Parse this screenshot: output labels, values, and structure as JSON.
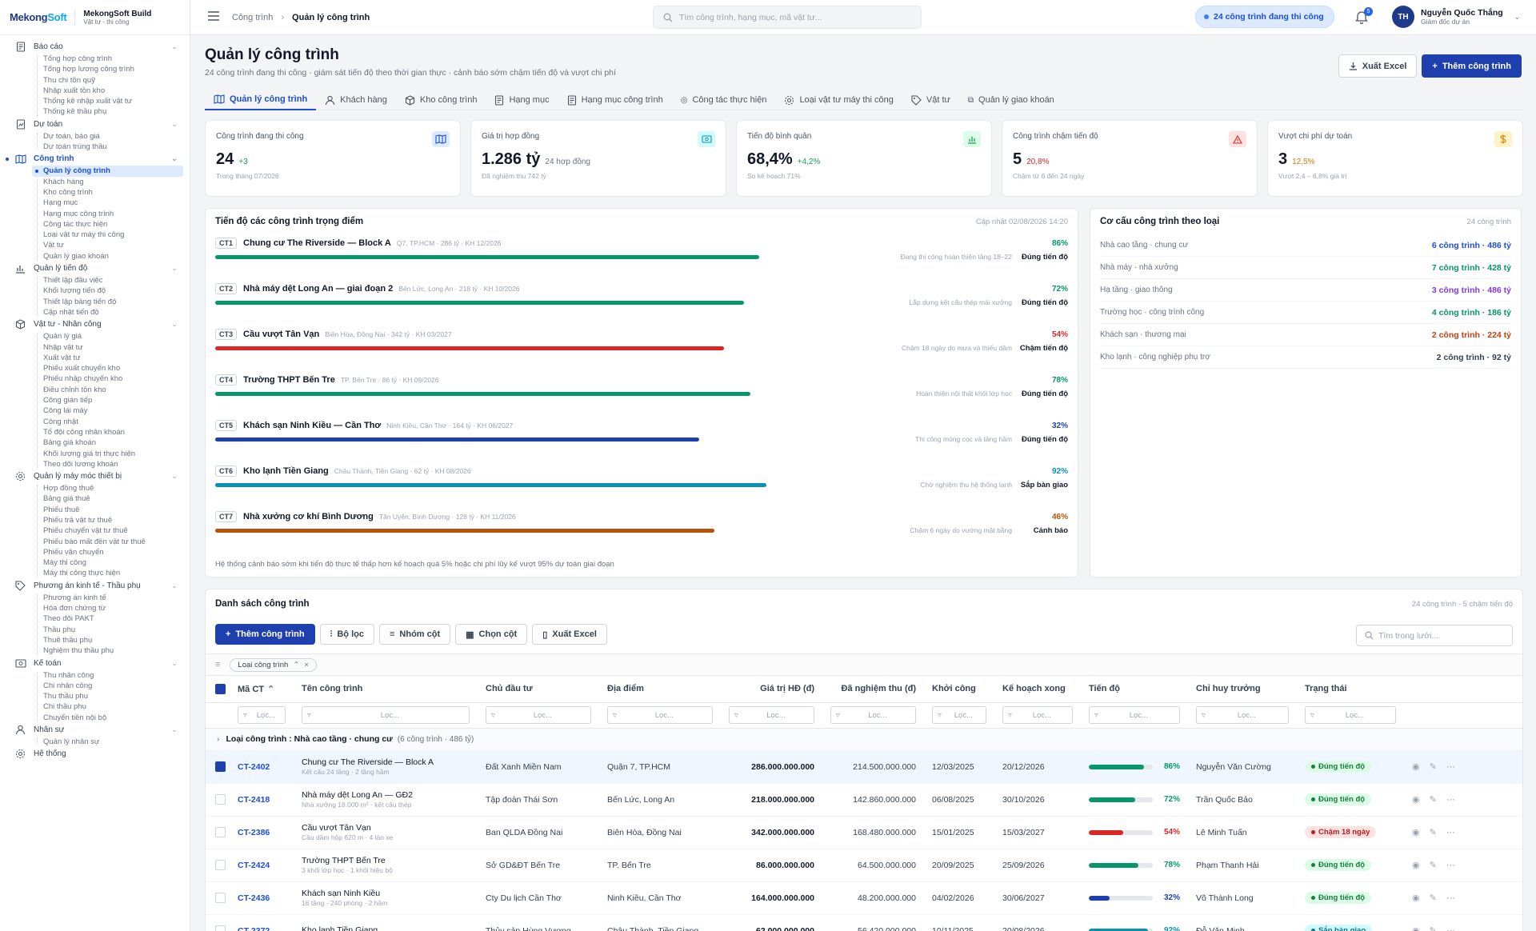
{
  "brand": {
    "logo_a": "Mekong",
    "logo_b": "Soft",
    "app": "MekongSoft Build",
    "app_sub": "Vật tư - thi công"
  },
  "nav": [
    {
      "id": "bao-cao",
      "label": "Báo cáo",
      "icon": "report-icon",
      "items": [
        "Tổng hợp công trình",
        "Tổng hợp lương công trình",
        "Thu chi tồn quỹ",
        "Nhập xuất tồn kho",
        "Thống kê nhập xuất vật tư",
        "Thống kê thầu phụ"
      ]
    },
    {
      "id": "du-toan",
      "label": "Dự toán",
      "icon": "estimate-icon",
      "items": [
        "Dự toán, báo giá",
        "Dự toán trúng thầu"
      ]
    },
    {
      "id": "cong-trinh",
      "label": "Công trình",
      "icon": "map-icon",
      "active": true,
      "items": [
        "Quản lý công trình",
        "Khách hàng",
        "Kho công trình",
        "Hạng mục",
        "Hạng mục công trình",
        "Công tác thực hiện",
        "Loại vật tư máy thi công",
        "Vật tư",
        "Quản lý giao khoán"
      ]
    },
    {
      "id": "tien-do",
      "label": "Quản lý tiến độ",
      "icon": "chart-icon",
      "items": [
        "Thiết lập đầu việc",
        "Khối lượng tiến độ",
        "Thiết lập bảng tiến độ",
        "Cập nhật tiến độ"
      ]
    },
    {
      "id": "vat-tu",
      "label": "Vật tư - Nhân công",
      "icon": "box-icon",
      "items": [
        "Quản lý giá",
        "Nhập vật tư",
        "Xuất vật tư",
        "Phiếu xuất chuyển kho",
        "Phiếu nhập chuyển kho",
        "Điều chỉnh tồn kho",
        "Công gián tiếp",
        "Công lái máy",
        "Công nhật",
        "Tổ đội công nhân khoán",
        "Bảng giá khoán",
        "Khối lượng giá trị thực hiện",
        "Theo dõi lương khoán"
      ]
    },
    {
      "id": "may-moc",
      "label": "Quản lý máy móc thiết bị",
      "icon": "gear-icon",
      "items": [
        "Hợp đồng thuê",
        "Bảng giá thuê",
        "Phiếu thuê",
        "Phiếu trả vật tư thuê",
        "Phiếu chuyển vật tư thuê",
        "Phiếu báo mất đền vật tư thuê",
        "Phiếu vận chuyển",
        "Máy thi công",
        "Máy thi công thực hiện"
      ]
    },
    {
      "id": "phuong-an",
      "label": "Phương án kinh tế - Thầu phụ",
      "icon": "tag-icon",
      "items": [
        "Phương án kinh tế",
        "Hóa đơn chứng từ",
        "Theo dõi PAKT",
        "Thầu phụ",
        "Thuê thầu phụ",
        "Nghiệm thu thầu phụ"
      ]
    },
    {
      "id": "ke-toan",
      "label": "Kế toán",
      "icon": "money-icon",
      "items": [
        "Thu nhân công",
        "Chi nhân công",
        "Thu thầu phụ",
        "Chi thầu phụ",
        "Chuyển tiền nội bộ"
      ]
    },
    {
      "id": "nhan-su",
      "label": "Nhân sự",
      "icon": "user-icon",
      "items": [
        "Quản lý nhân sự"
      ]
    },
    {
      "id": "he-thong",
      "label": "Hệ thống",
      "icon": "settings-icon",
      "items": []
    }
  ],
  "topbar": {
    "crumb1": "Công trình",
    "crumb2": "Quản lý công trình",
    "search_placeholder": "Tìm công trình, hạng mục, mã vật tư...",
    "pill": "24 công trình đang thi công",
    "bell_count": "5",
    "user_initials": "TH",
    "user_name": "Nguyễn Quốc Thắng",
    "user_role": "Giám đốc dự án"
  },
  "page": {
    "title": "Quản lý công trình",
    "subtitle": "24 công trình đang thi công · giám sát tiến độ theo thời gian thực · cảnh báo sớm chậm tiến độ và vượt chi phí",
    "export_label": "Xuất Excel",
    "add_label": "Thêm công trình"
  },
  "tabs": [
    "Quản lý công trình",
    "Khách hàng",
    "Kho công trình",
    "Hạng mục",
    "Hạng mục công trình",
    "Công tác thực hiện",
    "Loại vật tư máy thi công",
    "Vật tư",
    "Quản lý giao khoán"
  ],
  "cards": [
    {
      "label": "Công trình đang thi công",
      "value": "24",
      "delta": "+3",
      "delta_color": "#16a34a",
      "note": "Trong tháng 07/2026",
      "icon": "map-icon",
      "icon_bg": "#dbeafe",
      "icon_color": "#1d4ed8"
    },
    {
      "label": "Giá trị hợp đồng",
      "value": "1.286 tỷ",
      "delta": "24 hợp đồng",
      "delta_color": "#6b7280",
      "note": "Đã nghiệm thu 742 tỷ",
      "icon": "cash-icon",
      "icon_bg": "#cffafe",
      "icon_color": "#0891b2"
    },
    {
      "label": "Tiến độ bình quân",
      "value": "68,4%",
      "delta": "+4,2%",
      "delta_color": "#16a34a",
      "note": "So kế hoạch 71%",
      "icon": "bar-chart-icon",
      "icon_bg": "#dcfce7",
      "icon_color": "#16a34a"
    },
    {
      "label": "Công trình chậm tiến độ",
      "value": "5",
      "delta": "20,8%",
      "delta_color": "#dc2626",
      "note": "Chậm từ 6 đến 24 ngày",
      "icon": "warning-icon",
      "icon_bg": "#fee2e2",
      "icon_color": "#dc2626"
    },
    {
      "label": "Vượt chi phí dự toán",
      "value": "3",
      "delta": "12,5%",
      "delta_color": "#d97706",
      "note": "Vượt 2,4 – 6,8% giá trị",
      "icon": "dollar-icon",
      "icon_bg": "#fef3c7",
      "icon_color": "#d97706"
    }
  ],
  "progress_panel": {
    "title": "Tiến độ các công trình trọng điểm",
    "updated": "Cập nhật 02/08/2026 14:20",
    "footer": "Hệ thống cảnh báo sớm khi tiến độ thực tế thấp hơn kế hoạch quá 5% hoặc chi phí lũy kế vượt 95% dự toán giai đoạn",
    "rows": [
      {
        "code": "CT1",
        "name": "Chung cư The Riverside — Block A",
        "meta": "Q7, TP.HCM · 286 tỷ · KH 12/2026",
        "pct": 86,
        "pct_label": "86%",
        "color": "#059669",
        "note": "Đang thi công hoàn thiện tầng 18–22",
        "status": "Đúng tiến độ"
      },
      {
        "code": "CT2",
        "name": "Nhà máy dệt Long An — giai đoạn 2",
        "meta": "Bến Lức, Long An · 218 tỷ · KH 10/2026",
        "pct": 72,
        "pct_label": "72%",
        "color": "#059669",
        "note": "Lắp dựng kết cấu thép mái xưởng",
        "status": "Đúng tiến độ"
      },
      {
        "code": "CT3",
        "name": "Cầu vượt Tân Vạn",
        "meta": "Biên Hòa, Đồng Nai · 342 tỷ · KH 03/2027",
        "pct": 54,
        "pct_label": "54%",
        "color": "#dc2626",
        "note": "Chậm 18 ngày do mưa và thiếu dầm",
        "status": "Chậm tiến độ"
      },
      {
        "code": "CT4",
        "name": "Trường THPT Bến Tre",
        "meta": "TP. Bến Tre · 86 tỷ · KH 09/2026",
        "pct": 78,
        "pct_label": "78%",
        "color": "#059669",
        "note": "Hoàn thiện nội thất khối lớp học",
        "status": "Đúng tiến độ"
      },
      {
        "code": "CT5",
        "name": "Khách sạn Ninh Kiều — Cần Thơ",
        "meta": "Ninh Kiều, Cần Thơ · 164 tỷ · KH 06/2027",
        "pct": 32,
        "pct_label": "32%",
        "color": "#1e40af",
        "note": "Thi công móng cọc và tầng hầm",
        "status": "Đúng tiến độ"
      },
      {
        "code": "CT6",
        "name": "Kho lạnh Tiền Giang",
        "meta": "Châu Thành, Tiền Giang · 62 tỷ · KH 08/2026",
        "pct": 92,
        "pct_label": "92%",
        "color": "#0891b2",
        "note": "Chờ nghiệm thu hệ thống lạnh",
        "status": "Sắp bàn giao"
      },
      {
        "code": "CT7",
        "name": "Nhà xưởng cơ khí Bình Dương",
        "meta": "Tân Uyên, Bình Dương · 128 tỷ · KH 11/2026",
        "pct": 46,
        "pct_label": "46%",
        "color": "#b45309",
        "note": "Chậm 6 ngày do vướng mặt bằng",
        "status": "Cảnh báo"
      }
    ]
  },
  "structure_panel": {
    "title": "Cơ cấu công trình theo loại",
    "total": "24 công trình",
    "rows": [
      {
        "label": "Nhà cao tầng · chung cư",
        "value": "6 công trình · 486 tỷ",
        "color": "#1d4ed8"
      },
      {
        "label": "Nhà máy · nhà xưởng",
        "value": "7 công trình · 428 tỷ",
        "color": "#059669"
      },
      {
        "label": "Hạ tầng · giao thông",
        "value": "3 công trình · 486 tỷ",
        "color": "#7c3aed"
      },
      {
        "label": "Trường học · công trình công",
        "value": "4 công trình · 186 tỷ",
        "color": "#059669"
      },
      {
        "label": "Khách sạn · thương mại",
        "value": "2 công trình · 224 tỷ",
        "color": "#c2410c"
      },
      {
        "label": "Kho lạnh · công nghiệp phụ trợ",
        "value": "2 công trình · 92 tỷ",
        "color": "#374151"
      }
    ]
  },
  "grid": {
    "title": "Danh sách công trình",
    "summary": "24 công trình · 5 chậm tiến độ",
    "toolbar": {
      "add": "Thêm công trình",
      "filter": "Bộ lọc",
      "group": "Nhóm cột",
      "columns": "Chọn cột",
      "export": "Xuất Excel"
    },
    "search_placeholder": "Tìm trong lưới...",
    "chip": "Loại công trình",
    "filter_placeholder": "Lọc...",
    "columns": [
      "Mã CT",
      "Tên công trình",
      "Chủ đầu tư",
      "Địa điểm",
      "Giá trị HĐ (đ)",
      "Đã nghiệm thu (đ)",
      "Khởi công",
      "Kế hoạch xong",
      "Tiến độ",
      "Chỉ huy trưởng",
      "Trạng thái"
    ],
    "group_label": "Loại công trình : Nhà cao tầng · chung cư",
    "group_count": "(6 công trình · 486 tỷ)",
    "rows": [
      {
        "code": "CT-2402",
        "name": "Chung cư The Riverside — Block A",
        "desc": "Kết cấu 24 tầng · 2 tầng hầm",
        "owner": "Đất Xanh Miền Nam",
        "place": "Quận 7, TP.HCM",
        "value": "286.000.000.000",
        "accepted": "214.500.000.000",
        "start": "12/03/2025",
        "end": "20/12/2026",
        "pct": 86,
        "pct_label": "86%",
        "bar": "#059669",
        "pct_color": "#059669",
        "lead": "Nguyễn Văn Cường",
        "status": "Đúng tiến độ",
        "st_bg": "#dcfce7",
        "st_fg": "#15803d",
        "selected": true
      },
      {
        "code": "CT-2418",
        "name": "Nhà máy dệt Long An — GĐ2",
        "desc": "Nhà xưởng 18.000 m² · kết cấu thép",
        "owner": "Tập đoàn Thái Sơn",
        "place": "Bến Lức, Long An",
        "value": "218.000.000.000",
        "accepted": "142.860.000.000",
        "start": "06/08/2025",
        "end": "30/10/2026",
        "pct": 72,
        "pct_label": "72%",
        "bar": "#059669",
        "pct_color": "#059669",
        "lead": "Trần Quốc Bảo",
        "status": "Đúng tiến độ",
        "st_bg": "#dcfce7",
        "st_fg": "#15803d",
        "selected": false
      },
      {
        "code": "CT-2386",
        "name": "Cầu vượt Tân Vạn",
        "desc": "Cầu dầm hộp 620 m · 4 làn xe",
        "owner": "Ban QLDA Đồng Nai",
        "place": "Biên Hòa, Đồng Nai",
        "value": "342.000.000.000",
        "accepted": "168.480.000.000",
        "start": "15/01/2025",
        "end": "15/03/2027",
        "pct": 54,
        "pct_label": "54%",
        "bar": "#dc2626",
        "pct_color": "#dc2626",
        "lead": "Lê Minh Tuấn",
        "status": "Chậm 18 ngày",
        "st_bg": "#fee2e2",
        "st_fg": "#b91c1c",
        "selected": false
      },
      {
        "code": "CT-2424",
        "name": "Trường THPT Bến Tre",
        "desc": "3 khối lớp học · 1 khối hiệu bộ",
        "owner": "Sở GD&ĐT Bến Tre",
        "place": "TP. Bến Tre",
        "value": "86.000.000.000",
        "accepted": "64.500.000.000",
        "start": "20/09/2025",
        "end": "25/09/2026",
        "pct": 78,
        "pct_label": "78%",
        "bar": "#059669",
        "pct_color": "#059669",
        "lead": "Phạm Thanh Hải",
        "status": "Đúng tiến độ",
        "st_bg": "#dcfce7",
        "st_fg": "#15803d",
        "selected": false
      },
      {
        "code": "CT-2436",
        "name": "Khách sạn Ninh Kiều",
        "desc": "16 tầng · 240 phòng · 2 hầm",
        "owner": "Cty Du lịch Cần Thơ",
        "place": "Ninh Kiều, Cần Thơ",
        "value": "164.000.000.000",
        "accepted": "48.200.000.000",
        "start": "04/02/2026",
        "end": "30/06/2027",
        "pct": 32,
        "pct_label": "32%",
        "bar": "#1e40af",
        "pct_color": "#1e40af",
        "lead": "Võ Thành Long",
        "status": "Đúng tiến độ",
        "st_bg": "#dcfce7",
        "st_fg": "#15803d",
        "selected": false
      },
      {
        "code": "CT-2372",
        "name": "Kho lạnh Tiền Giang",
        "desc": "",
        "owner": "Thủy sản Hùng Vương",
        "place": "Châu Thành, Tiền Giang",
        "value": "62.000.000.000",
        "accepted": "56.420.000.000",
        "start": "10/11/2025",
        "end": "20/08/2026",
        "pct": 92,
        "pct_label": "92%",
        "bar": "#0891b2",
        "pct_color": "#0891b2",
        "lead": "Đỗ Văn Minh",
        "status": "Sắp bàn giao",
        "st_bg": "#cffafe",
        "st_fg": "#0e7490",
        "selected": false
      }
    ]
  }
}
